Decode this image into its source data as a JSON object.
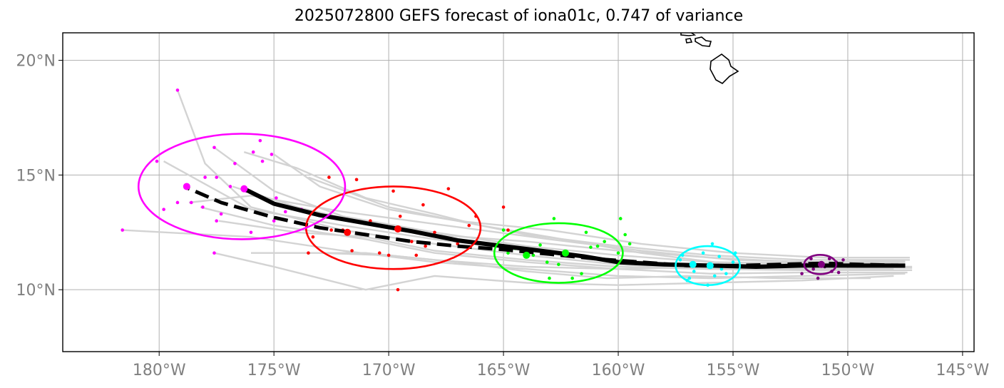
{
  "chart_data": {
    "type": "line",
    "title": "2025072800 GEFS forecast of iona01c, 0.747 of variance",
    "xlabel": "",
    "ylabel": "",
    "xlim": [
      -184.2,
      -144.5
    ],
    "ylim": [
      7.3,
      21.2
    ],
    "grid": true,
    "x_ticks": [
      {
        "value": -180,
        "label": "180°W"
      },
      {
        "value": -175,
        "label": "175°W"
      },
      {
        "value": -170,
        "label": "170°W"
      },
      {
        "value": -165,
        "label": "165°W"
      },
      {
        "value": -160,
        "label": "160°W"
      },
      {
        "value": -155,
        "label": "155°W"
      },
      {
        "value": -150,
        "label": "150°W"
      },
      {
        "value": -145,
        "label": "145°W"
      }
    ],
    "y_ticks": [
      {
        "value": 10,
        "label": "10°N"
      },
      {
        "value": 15,
        "label": "15°N"
      },
      {
        "value": 20,
        "label": "20°N"
      }
    ],
    "colors": {
      "ensemble": "#d3d3d3",
      "mean_track": "#000000",
      "grid": "#b0b0b0",
      "tick_label": "#808080",
      "coast": "#000000"
    },
    "mean_track": [
      [
        -147.5,
        11.05
      ],
      [
        -149,
        11.05
      ],
      [
        -150.5,
        11.05
      ],
      [
        -152,
        11.05
      ],
      [
        -154,
        11.0
      ],
      [
        -156,
        11.05
      ],
      [
        -158,
        11.1
      ],
      [
        -160,
        11.2
      ],
      [
        -161.5,
        11.45
      ],
      [
        -163,
        11.65
      ],
      [
        -165,
        11.9
      ],
      [
        -167,
        12.15
      ],
      [
        -169,
        12.55
      ],
      [
        -171,
        12.9
      ],
      [
        -173,
        13.25
      ],
      [
        -175,
        13.75
      ],
      [
        -176.3,
        14.4
      ]
    ],
    "dashed_track": [
      [
        -147.5,
        11.05
      ],
      [
        -149.5,
        11.1
      ],
      [
        -151,
        11.15
      ],
      [
        -153,
        11.1
      ],
      [
        -155,
        11.05
      ],
      [
        -157,
        11.05
      ],
      [
        -159,
        11.2
      ],
      [
        -161,
        11.35
      ],
      [
        -163,
        11.55
      ],
      [
        -165,
        11.75
      ],
      [
        -167,
        11.9
      ],
      [
        -169,
        12.1
      ],
      [
        -171,
        12.4
      ],
      [
        -173,
        12.7
      ],
      [
        -175,
        13.15
      ],
      [
        -177.3,
        13.8
      ],
      [
        -178.8,
        14.45
      ]
    ],
    "ensemble_tracks": [
      [
        [
          -147.2,
          11.0
        ],
        [
          -152,
          11.0
        ],
        [
          -156,
          11.0
        ],
        [
          -160,
          11.3
        ],
        [
          -164,
          11.7
        ],
        [
          -168,
          12.2
        ],
        [
          -172,
          12.8
        ],
        [
          -176,
          13.5
        ],
        [
          -179.8,
          15.6
        ]
      ],
      [
        [
          -147.2,
          10.85
        ],
        [
          -152,
          10.85
        ],
        [
          -156,
          10.9
        ],
        [
          -160,
          11.1
        ],
        [
          -164,
          11.5
        ],
        [
          -168,
          12.0
        ],
        [
          -172,
          12.6
        ],
        [
          -176,
          13.6
        ],
        [
          -178,
          15.5
        ],
        [
          -179.2,
          18.7
        ]
      ],
      [
        [
          -147.5,
          11.2
        ],
        [
          -152,
          11.15
        ],
        [
          -156,
          11.2
        ],
        [
          -160,
          11.5
        ],
        [
          -164,
          11.9
        ],
        [
          -168,
          12.5
        ],
        [
          -172,
          13.2
        ],
        [
          -175,
          14.3
        ],
        [
          -177.6,
          16.2
        ]
      ],
      [
        [
          -147.5,
          10.7
        ],
        [
          -152,
          10.6
        ],
        [
          -156,
          10.5
        ],
        [
          -160,
          10.6
        ],
        [
          -164,
          10.9
        ],
        [
          -168,
          11.2
        ],
        [
          -172,
          11.7
        ],
        [
          -176,
          12.3
        ],
        [
          -181.6,
          12.6
        ]
      ],
      [
        [
          -148,
          10.6
        ],
        [
          -152,
          10.4
        ],
        [
          -156,
          10.3
        ],
        [
          -160,
          10.2
        ],
        [
          -164,
          10.3
        ],
        [
          -168,
          10.6
        ],
        [
          -171,
          10.0
        ],
        [
          -175,
          11.0
        ],
        [
          -177.6,
          11.6
        ]
      ],
      [
        [
          -147.3,
          11.4
        ],
        [
          -151,
          11.4
        ],
        [
          -155,
          11.6
        ],
        [
          -159,
          12.0
        ],
        [
          -163,
          12.6
        ],
        [
          -167,
          13.0
        ],
        [
          -170,
          13.5
        ],
        [
          -173,
          14.5
        ],
        [
          -175,
          15.9
        ]
      ],
      [
        [
          -147.3,
          11.3
        ],
        [
          -152,
          11.3
        ],
        [
          -156,
          11.5
        ],
        [
          -160,
          11.9
        ],
        [
          -164,
          12.4
        ],
        [
          -167,
          13.0
        ],
        [
          -170,
          13.6
        ],
        [
          -173.5,
          14.9
        ]
      ],
      [
        [
          -148,
          10.9
        ],
        [
          -152,
          10.9
        ],
        [
          -156,
          10.9
        ],
        [
          -160,
          11.0
        ],
        [
          -164,
          11.3
        ],
        [
          -168,
          11.7
        ],
        [
          -171,
          12.3
        ],
        [
          -174,
          12.5
        ],
        [
          -177.4,
          13.0
        ]
      ],
      [
        [
          -147.8,
          11.1
        ],
        [
          -152,
          11.0
        ],
        [
          -156,
          11.0
        ],
        [
          -160,
          10.9
        ],
        [
          -164,
          11.0
        ],
        [
          -168,
          11.3
        ],
        [
          -171,
          11.6
        ],
        [
          -173,
          11.6
        ],
        [
          -176,
          11.6
        ]
      ],
      [
        [
          -147.2,
          10.95
        ],
        [
          -151,
          11.0
        ],
        [
          -155,
          11.1
        ],
        [
          -159,
          11.6
        ],
        [
          -163,
          12.3
        ],
        [
          -166,
          12.8
        ],
        [
          -168,
          13.3
        ],
        [
          -171,
          14.0
        ],
        [
          -174,
          15.3
        ],
        [
          -176.3,
          16.0
        ]
      ],
      [
        [
          -147.5,
          11.25
        ],
        [
          -151,
          11.2
        ],
        [
          -155,
          11.3
        ],
        [
          -159,
          11.7
        ],
        [
          -163,
          12.2
        ],
        [
          -166,
          12.6
        ],
        [
          -169,
          13.0
        ],
        [
          -172,
          13.4
        ],
        [
          -176,
          14.1
        ],
        [
          -178.7,
          13.8
        ]
      ],
      [
        [
          -149,
          10.5
        ],
        [
          -153,
          10.5
        ],
        [
          -157,
          10.6
        ],
        [
          -160.5,
          10.5
        ],
        [
          -164,
          10.8
        ],
        [
          -167,
          11.2
        ],
        [
          -170,
          11.5
        ],
        [
          -173,
          11.6
        ]
      ],
      [
        [
          -147.8,
          11.15
        ],
        [
          -152,
          11.2
        ],
        [
          -156,
          11.4
        ],
        [
          -160,
          11.7
        ],
        [
          -164,
          12.1
        ],
        [
          -168,
          12.4
        ],
        [
          -171,
          12.9
        ],
        [
          -174,
          13.6
        ],
        [
          -176.8,
          14.5
        ]
      ],
      [
        [
          -147.4,
          10.75
        ],
        [
          -152,
          10.75
        ],
        [
          -156,
          10.7
        ],
        [
          -160,
          10.9
        ],
        [
          -164,
          11.2
        ],
        [
          -168,
          11.6
        ],
        [
          -171,
          12.2
        ],
        [
          -175,
          12.8
        ],
        [
          -178.2,
          13.6
        ]
      ]
    ],
    "point_sets": [
      {
        "color": "#800080",
        "points": [
          [
            -151.2,
            11.15
          ],
          [
            -151.0,
            11.0
          ],
          [
            -150.5,
            11.2
          ],
          [
            -151.5,
            10.9
          ],
          [
            -150.8,
            11.35
          ],
          [
            -151.8,
            11.1
          ],
          [
            -150.2,
            11.3
          ],
          [
            -152.0,
            10.7
          ],
          [
            -151.3,
            10.5
          ],
          [
            -150.7,
            10.8
          ],
          [
            -151.6,
            11.35
          ],
          [
            -150.4,
            10.75
          ]
        ],
        "means": [
          [
            -151.15,
            11.1
          ]
        ],
        "ellipse": {
          "cx": -151.2,
          "cy": 11.1,
          "rx": 0.7,
          "ry": 0.42
        }
      },
      {
        "color": "#00ffff",
        "points": [
          [
            -156.8,
            11.15
          ],
          [
            -156.0,
            11.1
          ],
          [
            -155.5,
            10.9
          ],
          [
            -157.2,
            11.5
          ],
          [
            -155.0,
            11.2
          ],
          [
            -156.3,
            11.6
          ],
          [
            -155.8,
            10.6
          ],
          [
            -157.0,
            10.4
          ],
          [
            -154.3,
            11.0
          ],
          [
            -156.7,
            10.8
          ],
          [
            -155.3,
            10.7
          ],
          [
            -156.1,
            10.2
          ],
          [
            -157.3,
            11.3
          ],
          [
            -155.6,
            11.45
          ],
          [
            -154.9,
            11.6
          ],
          [
            -156.9,
            10.5
          ],
          [
            -155.9,
            12.0
          ]
        ],
        "means": [
          [
            -156.75,
            11.1
          ],
          [
            -156.0,
            11.05
          ]
        ],
        "ellipse": {
          "cx": -156.1,
          "cy": 11.05,
          "rx": 1.4,
          "ry": 0.85
        }
      },
      {
        "color": "#00ff00",
        "points": [
          [
            -162.3,
            11.6
          ],
          [
            -163.7,
            11.5
          ],
          [
            -161.2,
            11.85
          ],
          [
            -160.0,
            11.6
          ],
          [
            -162.0,
            10.5
          ],
          [
            -163.1,
            11.2
          ],
          [
            -159.7,
            12.4
          ],
          [
            -160.9,
            11.9
          ],
          [
            -162.8,
            13.1
          ],
          [
            -164.5,
            11.8
          ],
          [
            -161.6,
            10.7
          ],
          [
            -163.0,
            10.5
          ],
          [
            -159.9,
            13.1
          ],
          [
            -161.4,
            12.5
          ],
          [
            -165.0,
            12.6
          ],
          [
            -164.8,
            11.6
          ],
          [
            -160.6,
            12.1
          ],
          [
            -162.6,
            11.1
          ],
          [
            -159.5,
            12.0
          ],
          [
            -163.4,
            11.95
          ]
        ],
        "means": [
          [
            -162.3,
            11.6
          ],
          [
            -164.0,
            11.5
          ]
        ],
        "ellipse": {
          "cx": -162.6,
          "cy": 11.6,
          "rx": 2.8,
          "ry": 1.3
        }
      },
      {
        "color": "#ff0000",
        "points": [
          [
            -169.6,
            12.7
          ],
          [
            -171.8,
            12.5
          ],
          [
            -168.5,
            13.7
          ],
          [
            -167.4,
            14.4
          ],
          [
            -169.8,
            14.3
          ],
          [
            -172.6,
            14.9
          ],
          [
            -166.2,
            13.2
          ],
          [
            -165.0,
            13.6
          ],
          [
            -171.4,
            14.8
          ],
          [
            -168.0,
            12.5
          ],
          [
            -170.8,
            12.9
          ],
          [
            -173.3,
            12.3
          ],
          [
            -169.0,
            12.1
          ],
          [
            -170.4,
            11.6
          ],
          [
            -171.6,
            11.7
          ],
          [
            -168.8,
            11.5
          ],
          [
            -172.0,
            12.6
          ],
          [
            -167.0,
            12.0
          ],
          [
            -169.5,
            13.2
          ],
          [
            -173.5,
            11.6
          ],
          [
            -170.0,
            11.5
          ],
          [
            -164.8,
            12.6
          ],
          [
            -166.5,
            12.8
          ],
          [
            -169.6,
            10.0
          ],
          [
            -172.5,
            12.6
          ],
          [
            -170.8,
            13.0
          ],
          [
            -168.4,
            11.9
          ]
        ],
        "means": [
          [
            -169.6,
            12.65
          ],
          [
            -171.8,
            12.5
          ]
        ],
        "ellipse": {
          "cx": -169.8,
          "cy": 12.7,
          "rx": 3.8,
          "ry": 1.8
        }
      },
      {
        "color": "#ff00ff",
        "points": [
          [
            -176.3,
            14.4
          ],
          [
            -178.8,
            14.5
          ],
          [
            -177.6,
            16.2
          ],
          [
            -175.9,
            16.0
          ],
          [
            -175.1,
            15.9
          ],
          [
            -176.7,
            15.5
          ],
          [
            -175.5,
            15.6
          ],
          [
            -179.2,
            18.7
          ],
          [
            -180.1,
            15.6
          ],
          [
            -178.1,
            13.6
          ],
          [
            -177.3,
            13.3
          ],
          [
            -176.0,
            12.5
          ],
          [
            -175.0,
            13.0
          ],
          [
            -174.5,
            13.4
          ],
          [
            -173.8,
            13.5
          ],
          [
            -179.8,
            13.5
          ],
          [
            -179.2,
            13.8
          ],
          [
            -177.5,
            13.0
          ],
          [
            -177.5,
            14.9
          ],
          [
            -176.9,
            14.5
          ],
          [
            -174.9,
            14.0
          ],
          [
            -175.6,
            16.5
          ],
          [
            -176.2,
            14.3
          ],
          [
            -177.6,
            11.6
          ],
          [
            -181.6,
            12.6
          ],
          [
            -178.0,
            14.9
          ],
          [
            -178.6,
            13.8
          ]
        ],
        "means": [
          [
            -176.3,
            14.4
          ],
          [
            -178.8,
            14.5
          ]
        ],
        "ellipse": {
          "cx": -176.4,
          "cy": 14.5,
          "rx": 4.5,
          "ry": 2.3
        }
      }
    ]
  }
}
